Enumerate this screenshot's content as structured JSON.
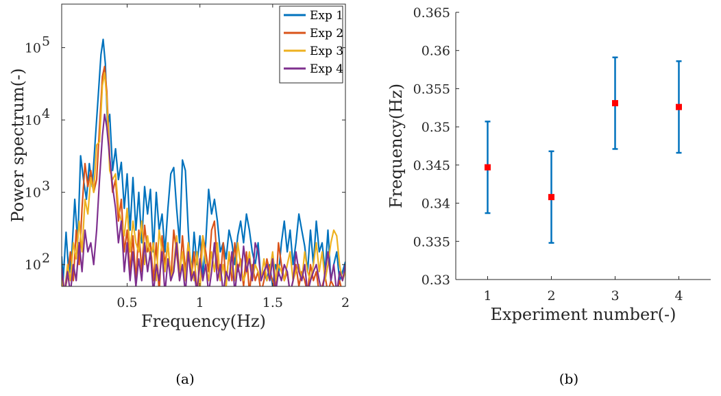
{
  "chart_data": [
    {
      "type": "line",
      "caption": "(a)",
      "xlabel": "Frequency(Hz)",
      "ylabel": "Power spectrum(-)",
      "xlim": [
        0.05,
        2
      ],
      "ylim": [
        50,
        400000
      ],
      "yscale": "log",
      "xticks": [
        0.5,
        1,
        1.5,
        2
      ],
      "xtick_labels": [
        "0.5",
        "1",
        "1.5",
        "2"
      ],
      "yticks": [
        100,
        1000,
        10000,
        100000
      ],
      "ytick_labels": [
        {
          "base": "10",
          "exp": "2"
        },
        {
          "base": "10",
          "exp": "3"
        },
        {
          "base": "10",
          "exp": "4"
        },
        {
          "base": "10",
          "exp": "5"
        }
      ],
      "legend_position": "top-right",
      "series": [
        {
          "name": "Exp 1",
          "color": "#0072BD",
          "x": [
            0.05,
            0.06,
            0.08,
            0.1,
            0.12,
            0.14,
            0.16,
            0.18,
            0.2,
            0.22,
            0.24,
            0.26,
            0.28,
            0.3,
            0.32,
            0.335,
            0.35,
            0.365,
            0.38,
            0.4,
            0.42,
            0.44,
            0.46,
            0.48,
            0.5,
            0.52,
            0.54,
            0.56,
            0.58,
            0.6,
            0.62,
            0.64,
            0.66,
            0.68,
            0.7,
            0.72,
            0.74,
            0.76,
            0.78,
            0.8,
            0.82,
            0.84,
            0.86,
            0.88,
            0.9,
            0.92,
            0.94,
            0.96,
            0.98,
            1.0,
            1.02,
            1.04,
            1.06,
            1.08,
            1.1,
            1.12,
            1.14,
            1.16,
            1.18,
            1.2,
            1.22,
            1.24,
            1.26,
            1.28,
            1.3,
            1.32,
            1.34,
            1.36,
            1.38,
            1.4,
            1.42,
            1.44,
            1.46,
            1.48,
            1.5,
            1.52,
            1.54,
            1.56,
            1.58,
            1.6,
            1.62,
            1.64,
            1.66,
            1.68,
            1.7,
            1.72,
            1.74,
            1.76,
            1.78,
            1.8,
            1.82,
            1.84,
            1.86,
            1.88,
            1.9,
            1.92,
            1.94,
            1.96,
            1.98,
            2.0
          ],
          "y": [
            130,
            60,
            280,
            70,
            150,
            800,
            200,
            3200,
            1500,
            800,
            2500,
            1200,
            5000,
            20000,
            80000,
            130000,
            60000,
            8000,
            12000,
            2000,
            4000,
            1500,
            2600,
            600,
            1800,
            300,
            1600,
            300,
            1000,
            200,
            1200,
            500,
            1100,
            150,
            1000,
            300,
            500,
            150,
            600,
            1800,
            2200,
            600,
            200,
            2800,
            2000,
            300,
            60,
            280,
            100,
            250,
            70,
            200,
            1100,
            500,
            800,
            400,
            150,
            200,
            120,
            300,
            200,
            100,
            250,
            400,
            200,
            500,
            300,
            150,
            100,
            200,
            60,
            80,
            60,
            100,
            50,
            100,
            70,
            200,
            400,
            150,
            300,
            100,
            200,
            500,
            300,
            180,
            80,
            300,
            100,
            400,
            150,
            200,
            80,
            300,
            60,
            100,
            150,
            60,
            80,
            110
          ]
        },
        {
          "name": "Exp 2",
          "color": "#D95319",
          "x": [
            0.05,
            0.07,
            0.09,
            0.11,
            0.13,
            0.15,
            0.17,
            0.19,
            0.21,
            0.23,
            0.25,
            0.27,
            0.29,
            0.31,
            0.33,
            0.345,
            0.36,
            0.38,
            0.4,
            0.42,
            0.44,
            0.46,
            0.48,
            0.5,
            0.52,
            0.54,
            0.56,
            0.58,
            0.6,
            0.62,
            0.64,
            0.66,
            0.68,
            0.7,
            0.72,
            0.74,
            0.76,
            0.78,
            0.8,
            0.82,
            0.84,
            0.86,
            0.88,
            0.9,
            0.92,
            0.94,
            0.96,
            0.98,
            1.0,
            1.02,
            1.04,
            1.06,
            1.08,
            1.1,
            1.12,
            1.14,
            1.16,
            1.18,
            1.2,
            1.22,
            1.24,
            1.26,
            1.28,
            1.3,
            1.32,
            1.34,
            1.36,
            1.38,
            1.4,
            1.42,
            1.44,
            1.46,
            1.48,
            1.5,
            1.52,
            1.54,
            1.56,
            1.58,
            1.6,
            1.62,
            1.64,
            1.66,
            1.68,
            1.7,
            1.72,
            1.74,
            1.76,
            1.78,
            1.8,
            1.82,
            1.84,
            1.86,
            1.88,
            1.9,
            1.92,
            1.94,
            1.96,
            1.98,
            2.0
          ],
          "y": [
            80,
            40,
            70,
            150,
            60,
            300,
            100,
            600,
            2500,
            1200,
            2000,
            1000,
            1500,
            8000,
            40000,
            55000,
            25000,
            3000,
            1000,
            1500,
            400,
            800,
            150,
            300,
            80,
            250,
            60,
            300,
            80,
            350,
            150,
            200,
            60,
            200,
            40,
            250,
            100,
            200,
            60,
            300,
            150,
            60,
            250,
            80,
            200,
            60,
            150,
            40,
            100,
            250,
            150,
            80,
            300,
            400,
            100,
            60,
            200,
            50,
            150,
            60,
            200,
            80,
            120,
            50,
            150,
            40,
            100,
            60,
            80,
            40,
            60,
            120,
            80,
            60,
            40,
            200,
            100,
            60,
            80,
            40,
            60,
            100,
            50,
            80,
            60,
            40,
            100,
            60,
            80,
            40,
            50,
            70,
            40,
            60,
            50,
            40,
            60,
            40,
            50
          ]
        },
        {
          "name": "Exp 3",
          "color": "#EDB120",
          "x": [
            0.05,
            0.07,
            0.09,
            0.11,
            0.13,
            0.15,
            0.17,
            0.19,
            0.21,
            0.23,
            0.25,
            0.27,
            0.29,
            0.31,
            0.33,
            0.345,
            0.36,
            0.38,
            0.4,
            0.42,
            0.44,
            0.46,
            0.48,
            0.5,
            0.52,
            0.54,
            0.56,
            0.58,
            0.6,
            0.62,
            0.64,
            0.66,
            0.68,
            0.7,
            0.72,
            0.74,
            0.76,
            0.78,
            0.8,
            0.82,
            0.84,
            0.86,
            0.88,
            0.9,
            0.92,
            0.94,
            0.96,
            0.98,
            1.0,
            1.02,
            1.04,
            1.06,
            1.08,
            1.1,
            1.12,
            1.14,
            1.16,
            1.18,
            1.2,
            1.22,
            1.24,
            1.26,
            1.28,
            1.3,
            1.32,
            1.34,
            1.36,
            1.38,
            1.4,
            1.42,
            1.44,
            1.46,
            1.48,
            1.5,
            1.52,
            1.54,
            1.56,
            1.58,
            1.6,
            1.62,
            1.64,
            1.66,
            1.68,
            1.7,
            1.72,
            1.74,
            1.76,
            1.78,
            1.8,
            1.82,
            1.84,
            1.86,
            1.88,
            1.9,
            1.92,
            1.94,
            1.96,
            1.98,
            2.0
          ],
          "y": [
            60,
            40,
            100,
            60,
            200,
            120,
            400,
            150,
            800,
            500,
            1600,
            1000,
            4500,
            5000,
            30000,
            45000,
            20000,
            2000,
            1500,
            1800,
            600,
            400,
            250,
            600,
            150,
            400,
            200,
            150,
            400,
            100,
            250,
            120,
            200,
            60,
            300,
            150,
            80,
            200,
            60,
            100,
            250,
            80,
            150,
            60,
            200,
            100,
            60,
            150,
            40,
            250,
            100,
            60,
            150,
            80,
            200,
            60,
            100,
            50,
            150,
            80,
            60,
            200,
            100,
            60,
            80,
            150,
            60,
            100,
            80,
            60,
            120,
            60,
            80,
            150,
            60,
            100,
            80,
            60,
            100,
            150,
            60,
            80,
            100,
            60,
            150,
            80,
            60,
            100,
            200,
            80,
            150,
            60,
            100,
            200,
            300,
            250,
            100,
            60,
            80
          ]
        },
        {
          "name": "Exp 4",
          "color": "#7E2F8E",
          "x": [
            0.05,
            0.07,
            0.09,
            0.11,
            0.13,
            0.15,
            0.17,
            0.19,
            0.21,
            0.23,
            0.25,
            0.27,
            0.29,
            0.31,
            0.33,
            0.345,
            0.36,
            0.38,
            0.4,
            0.42,
            0.44,
            0.46,
            0.48,
            0.5,
            0.52,
            0.54,
            0.56,
            0.58,
            0.6,
            0.62,
            0.64,
            0.66,
            0.68,
            0.7,
            0.72,
            0.74,
            0.76,
            0.78,
            0.8,
            0.82,
            0.84,
            0.86,
            0.88,
            0.9,
            0.92,
            0.94,
            0.96,
            0.98,
            1.0,
            1.02,
            1.04,
            1.06,
            1.08,
            1.1,
            1.12,
            1.14,
            1.16,
            1.18,
            1.2,
            1.22,
            1.24,
            1.26,
            1.28,
            1.3,
            1.32,
            1.34,
            1.36,
            1.38,
            1.4,
            1.42,
            1.44,
            1.46,
            1.48,
            1.5,
            1.52,
            1.54,
            1.56,
            1.58,
            1.6,
            1.62,
            1.64,
            1.66,
            1.68,
            1.7,
            1.72,
            1.74,
            1.76,
            1.78,
            1.8,
            1.82,
            1.84,
            1.86,
            1.88,
            1.9,
            1.92,
            1.94,
            1.96,
            1.98,
            2.0
          ],
          "y": [
            90,
            40,
            80,
            40,
            100,
            60,
            200,
            80,
            300,
            150,
            200,
            100,
            300,
            1500,
            6000,
            12000,
            8000,
            3000,
            1200,
            600,
            200,
            400,
            80,
            200,
            60,
            150,
            50,
            120,
            60,
            200,
            80,
            150,
            40,
            100,
            60,
            150,
            40,
            120,
            60,
            80,
            200,
            60,
            100,
            40,
            150,
            60,
            80,
            40,
            120,
            60,
            100,
            40,
            80,
            200,
            60,
            100,
            40,
            80,
            60,
            150,
            40,
            100,
            60,
            180,
            80,
            120,
            60,
            200,
            150,
            60,
            80,
            100,
            60,
            120,
            40,
            80,
            60,
            100,
            80,
            40,
            60,
            150,
            80,
            60,
            100,
            40,
            60,
            80,
            100,
            60,
            40,
            80,
            150,
            60,
            100,
            40,
            80,
            60,
            100
          ]
        }
      ]
    },
    {
      "type": "scatter",
      "caption": "(b)",
      "xlabel": "Experiment number(-)",
      "ylabel": "Frequency(Hz)",
      "xlim": [
        0.5,
        4.5
      ],
      "ylim": [
        0.33,
        0.365
      ],
      "xticks": [
        1,
        2,
        3,
        4
      ],
      "xtick_labels": [
        "1",
        "2",
        "3",
        "4"
      ],
      "yticks": [
        0.33,
        0.335,
        0.34,
        0.345,
        0.35,
        0.355,
        0.36,
        0.365
      ],
      "ytick_labels": [
        "0.33",
        "0.335",
        "0.34",
        "0.345",
        "0.35",
        "0.355",
        "0.36",
        "0.365"
      ],
      "errorbar_color": "#0072BD",
      "marker_color": "#FF0000",
      "points": [
        {
          "x": 1,
          "y": 0.3447,
          "lower": 0.3387,
          "upper": 0.3507
        },
        {
          "x": 2,
          "y": 0.3408,
          "lower": 0.3348,
          "upper": 0.3468
        },
        {
          "x": 3,
          "y": 0.3531,
          "lower": 0.3471,
          "upper": 0.3591
        },
        {
          "x": 4,
          "y": 0.3526,
          "lower": 0.3466,
          "upper": 0.3586
        }
      ]
    }
  ]
}
